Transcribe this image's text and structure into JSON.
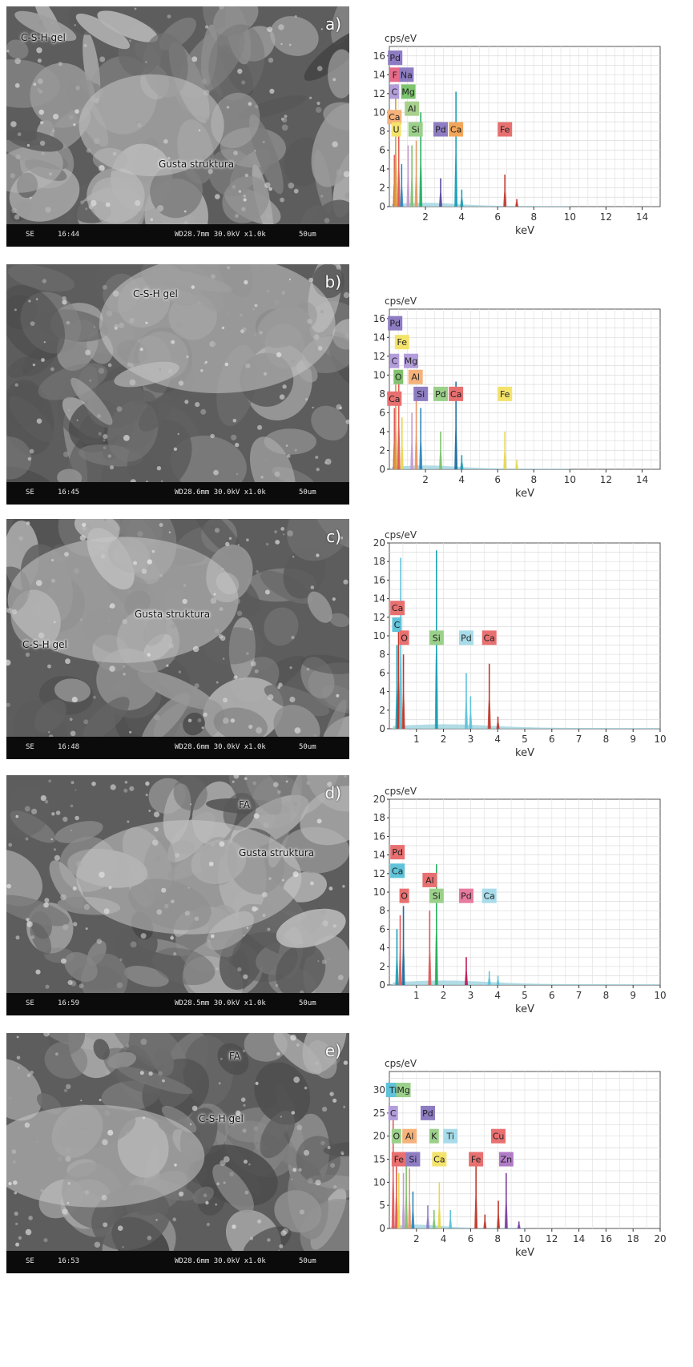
{
  "panels": [
    {
      "letter": "a)",
      "labels": [
        "C-S-H gel",
        "Gusta struktura"
      ],
      "sem_footer": {
        "mode": "SE",
        "time": "16:44",
        "params": "WD28.7mm 30.0kV x1.0k",
        "scale": "50um"
      },
      "spectrum": {
        "ylabel": "cps/eV",
        "xlabel": "keV",
        "xmax": 15,
        "ymax": 17,
        "xticks": [
          2,
          4,
          6,
          8,
          10,
          12,
          14
        ],
        "yticks": [
          0,
          2,
          4,
          6,
          8,
          10,
          12,
          14,
          16
        ],
        "peaks": [
          {
            "x": 0.28,
            "y": 5.5,
            "color": "#e05a5a"
          },
          {
            "x": 0.35,
            "y": 13,
            "color": "#d9a033"
          },
          {
            "x": 0.52,
            "y": 9,
            "color": "#e05a5a"
          },
          {
            "x": 0.68,
            "y": 4.5,
            "color": "#2e86c1"
          },
          {
            "x": 1.04,
            "y": 6.5,
            "color": "#c39bd3"
          },
          {
            "x": 1.25,
            "y": 6.5,
            "color": "#82c26e"
          },
          {
            "x": 1.49,
            "y": 7,
            "color": "#e59866"
          },
          {
            "x": 1.74,
            "y": 10,
            "color": "#27ae60"
          },
          {
            "x": 2.84,
            "y": 3,
            "color": "#5b4a9e"
          },
          {
            "x": 3.69,
            "y": 12.2,
            "color": "#1a9fb5"
          },
          {
            "x": 4.01,
            "y": 1.8,
            "color": "#1a9fb5"
          },
          {
            "x": 6.4,
            "y": 3.4,
            "color": "#c0392b"
          },
          {
            "x": 7.06,
            "y": 0.8,
            "color": "#c0392b"
          }
        ],
        "tags": [
          {
            "text": "Pd",
            "x": 0.32,
            "y": 15.8,
            "color": "#8e7cc3"
          },
          {
            "text": "F",
            "x": 0.3,
            "y": 14.0,
            "color": "#e86a8a"
          },
          {
            "text": "Na",
            "x": 0.95,
            "y": 14.0,
            "color": "#8e7cc3"
          },
          {
            "text": "C",
            "x": 0.28,
            "y": 12.2,
            "color": "#b39ddb"
          },
          {
            "text": "Mg",
            "x": 1.05,
            "y": 12.2,
            "color": "#7dc46e"
          },
          {
            "text": "Al",
            "x": 1.25,
            "y": 10.4,
            "color": "#a8d08d"
          },
          {
            "text": "Ca",
            "x": 0.28,
            "y": 9.5,
            "color": "#f5b27a"
          },
          {
            "text": "U",
            "x": 0.38,
            "y": 8.2,
            "color": "#f3e36b"
          },
          {
            "text": "Si",
            "x": 1.45,
            "y": 8.2,
            "color": "#9bd08a"
          },
          {
            "text": "Pd",
            "x": 2.84,
            "y": 8.2,
            "color": "#8e7cc3"
          },
          {
            "text": "Ca",
            "x": 3.69,
            "y": 8.2,
            "color": "#f2a65a"
          },
          {
            "text": "Fe",
            "x": 6.4,
            "y": 8.2,
            "color": "#e87070"
          }
        ]
      }
    },
    {
      "letter": "b)",
      "labels": [
        "C-S-H gel"
      ],
      "sem_footer": {
        "mode": "SE",
        "time": "16:45",
        "params": "WD28.6mm 30.0kV x1.0k",
        "scale": "50um"
      },
      "spectrum": {
        "ylabel": "cps/eV",
        "xlabel": "keV",
        "xmax": 15,
        "ymax": 17,
        "xticks": [
          2,
          4,
          6,
          8,
          10,
          12,
          14
        ],
        "yticks": [
          0,
          2,
          4,
          6,
          8,
          10,
          12,
          14,
          16
        ],
        "peaks": [
          {
            "x": 0.28,
            "y": 6.5,
            "color": "#e05a5a"
          },
          {
            "x": 0.35,
            "y": 9,
            "color": "#d9a033"
          },
          {
            "x": 0.52,
            "y": 10.5,
            "color": "#e05a5a"
          },
          {
            "x": 0.7,
            "y": 5.5,
            "color": "#e6d84a"
          },
          {
            "x": 1.25,
            "y": 6,
            "color": "#c39bd3"
          },
          {
            "x": 1.49,
            "y": 7.5,
            "color": "#e59866"
          },
          {
            "x": 1.74,
            "y": 6.5,
            "color": "#2e86c1"
          },
          {
            "x": 2.84,
            "y": 4,
            "color": "#7dc46e"
          },
          {
            "x": 3.69,
            "y": 9.3,
            "color": "#1f6f9f"
          },
          {
            "x": 4.01,
            "y": 1.5,
            "color": "#1a9fb5"
          },
          {
            "x": 6.4,
            "y": 4,
            "color": "#e6d84a"
          },
          {
            "x": 7.06,
            "y": 1,
            "color": "#e6d84a"
          }
        ],
        "tags": [
          {
            "text": "Pd",
            "x": 0.32,
            "y": 15.5,
            "color": "#8e7cc3"
          },
          {
            "text": "Fe",
            "x": 0.7,
            "y": 13.5,
            "color": "#f3e36b"
          },
          {
            "text": "C",
            "x": 0.28,
            "y": 11.5,
            "color": "#b39ddb"
          },
          {
            "text": "Mg",
            "x": 1.2,
            "y": 11.5,
            "color": "#b39ddb"
          },
          {
            "text": "O",
            "x": 0.5,
            "y": 9.8,
            "color": "#82c26e"
          },
          {
            "text": "Al",
            "x": 1.45,
            "y": 9.8,
            "color": "#f5b27a"
          },
          {
            "text": "Ca",
            "x": 0.28,
            "y": 7.5,
            "color": "#e87070"
          },
          {
            "text": "Si",
            "x": 1.74,
            "y": 8.0,
            "color": "#8e7cc3"
          },
          {
            "text": "Pd",
            "x": 2.84,
            "y": 8.0,
            "color": "#9bd08a"
          },
          {
            "text": "Ca",
            "x": 3.69,
            "y": 8.0,
            "color": "#e87070"
          },
          {
            "text": "Fe",
            "x": 6.4,
            "y": 8.0,
            "color": "#f3e36b"
          }
        ]
      }
    },
    {
      "letter": "c)",
      "labels": [
        "Gusta struktura",
        "C-S-H gel"
      ],
      "sem_footer": {
        "mode": "SE",
        "time": "16:48",
        "params": "WD28.6mm 30.0kV x1.0k",
        "scale": "50um"
      },
      "spectrum": {
        "ylabel": "cps/eV",
        "xlabel": "keV",
        "xmax": 10,
        "ymax": 20,
        "xticks": [
          1,
          2,
          3,
          4,
          5,
          6,
          7,
          8,
          9,
          10
        ],
        "yticks": [
          0,
          2,
          4,
          6,
          8,
          10,
          12,
          14,
          16,
          18,
          20
        ],
        "peaks": [
          {
            "x": 0.28,
            "y": 9,
            "color": "#1a9fb5"
          },
          {
            "x": 0.34,
            "y": 10.5,
            "color": "#c0392b"
          },
          {
            "x": 0.42,
            "y": 18.4,
            "color": "#5fc3d9"
          },
          {
            "x": 0.52,
            "y": 8,
            "color": "#c0392b"
          },
          {
            "x": 1.74,
            "y": 19.2,
            "color": "#1a9fb5"
          },
          {
            "x": 2.84,
            "y": 6,
            "color": "#5fc3d9"
          },
          {
            "x": 3.0,
            "y": 3.5,
            "color": "#5fc3d9"
          },
          {
            "x": 3.69,
            "y": 7,
            "color": "#c0392b"
          },
          {
            "x": 4.01,
            "y": 1.3,
            "color": "#c0392b"
          }
        ],
        "tags": [
          {
            "text": "Ca",
            "x": 0.3,
            "y": 13.0,
            "color": "#e87070"
          },
          {
            "text": "C",
            "x": 0.28,
            "y": 11.2,
            "color": "#5fc3d9"
          },
          {
            "text": "O",
            "x": 0.55,
            "y": 9.8,
            "color": "#e87070"
          },
          {
            "text": "Si",
            "x": 1.74,
            "y": 9.8,
            "color": "#9bd08a"
          },
          {
            "text": "Pd",
            "x": 2.84,
            "y": 9.8,
            "color": "#a8dcea"
          },
          {
            "text": "Ca",
            "x": 3.69,
            "y": 9.8,
            "color": "#e87070"
          }
        ]
      }
    },
    {
      "letter": "d)",
      "labels": [
        "FA",
        "Gusta struktura"
      ],
      "sem_footer": {
        "mode": "SE",
        "time": "16:59",
        "params": "WD28.5mm 30.0kV x1.0k",
        "scale": "50um"
      },
      "spectrum": {
        "ylabel": "cps/eV",
        "xlabel": "keV",
        "xmax": 10,
        "ymax": 20,
        "xticks": [
          1,
          2,
          3,
          4,
          5,
          6,
          7,
          8,
          9,
          10
        ],
        "yticks": [
          0,
          2,
          4,
          6,
          8,
          10,
          12,
          14,
          16,
          18,
          20
        ],
        "peaks": [
          {
            "x": 0.28,
            "y": 6,
            "color": "#1a9fb5"
          },
          {
            "x": 0.4,
            "y": 7.5,
            "color": "#e05a5a"
          },
          {
            "x": 0.52,
            "y": 8.5,
            "color": "#1f6f9f"
          },
          {
            "x": 1.49,
            "y": 8,
            "color": "#e05a5a"
          },
          {
            "x": 1.74,
            "y": 13,
            "color": "#27ae60"
          },
          {
            "x": 2.84,
            "y": 3,
            "color": "#c2185b"
          },
          {
            "x": 3.69,
            "y": 1.5,
            "color": "#5fc3d9"
          },
          {
            "x": 4.01,
            "y": 1,
            "color": "#5fc3d9"
          }
        ],
        "tags": [
          {
            "text": "Pd",
            "x": 0.3,
            "y": 14.3,
            "color": "#e87070"
          },
          {
            "text": "Ca",
            "x": 0.3,
            "y": 12.3,
            "color": "#5fc3d9"
          },
          {
            "text": "Al",
            "x": 1.49,
            "y": 11.3,
            "color": "#e87070"
          },
          {
            "text": "O",
            "x": 0.55,
            "y": 9.6,
            "color": "#e87070"
          },
          {
            "text": "Si",
            "x": 1.74,
            "y": 9.6,
            "color": "#9bd08a"
          },
          {
            "text": "Pd",
            "x": 2.84,
            "y": 9.6,
            "color": "#e87ba0"
          },
          {
            "text": "Ca",
            "x": 3.69,
            "y": 9.6,
            "color": "#a8dcea"
          }
        ]
      }
    },
    {
      "letter": "e)",
      "labels": [
        "FA",
        "C-S-H gel"
      ],
      "sem_footer": {
        "mode": "SE",
        "time": "16:53",
        "params": "WD28.6mm 30.0kV x1.0k",
        "scale": "50um"
      },
      "spectrum": {
        "ylabel": "cps/eV",
        "xlabel": "keV",
        "xmax": 20,
        "ymax": 34,
        "xticks": [
          2,
          4,
          6,
          8,
          10,
          12,
          14,
          16,
          18,
          20
        ],
        "yticks": [
          0,
          5,
          10,
          15,
          20,
          25,
          30
        ],
        "peaks": [
          {
            "x": 0.28,
            "y": 24,
            "color": "#e05a5a"
          },
          {
            "x": 0.52,
            "y": 16,
            "color": "#e05a5a"
          },
          {
            "x": 0.7,
            "y": 12,
            "color": "#e6d84a"
          },
          {
            "x": 1.04,
            "y": 12,
            "color": "#c39bd3"
          },
          {
            "x": 1.25,
            "y": 15,
            "color": "#82c26e"
          },
          {
            "x": 1.49,
            "y": 13,
            "color": "#e59866"
          },
          {
            "x": 1.74,
            "y": 8,
            "color": "#2e86c1"
          },
          {
            "x": 2.84,
            "y": 5,
            "color": "#8e7cc3"
          },
          {
            "x": 3.3,
            "y": 4,
            "color": "#7dc46e"
          },
          {
            "x": 3.69,
            "y": 10,
            "color": "#e6d84a"
          },
          {
            "x": 4.51,
            "y": 4,
            "color": "#5fc3d9"
          },
          {
            "x": 6.4,
            "y": 15,
            "color": "#c0392b"
          },
          {
            "x": 7.06,
            "y": 3,
            "color": "#c0392b"
          },
          {
            "x": 8.05,
            "y": 6,
            "color": "#c0392b"
          },
          {
            "x": 8.63,
            "y": 12,
            "color": "#7b3f9e"
          },
          {
            "x": 9.57,
            "y": 1.5,
            "color": "#7b3f9e"
          }
        ],
        "tags": [
          {
            "text": "Ti",
            "x": 0.28,
            "y": 30.0,
            "color": "#5fc3d9"
          },
          {
            "text": "Mg",
            "x": 1.04,
            "y": 30.0,
            "color": "#9bd08a"
          },
          {
            "text": "C",
            "x": 0.28,
            "y": 25.0,
            "color": "#b39ddb"
          },
          {
            "text": "Pd",
            "x": 2.84,
            "y": 25.0,
            "color": "#8e7cc3"
          },
          {
            "text": "O",
            "x": 0.52,
            "y": 20.0,
            "color": "#9bd08a"
          },
          {
            "text": "Al",
            "x": 1.49,
            "y": 20.0,
            "color": "#f5b27a"
          },
          {
            "text": "K",
            "x": 3.3,
            "y": 20.0,
            "color": "#9bd08a"
          },
          {
            "text": "Ti",
            "x": 4.51,
            "y": 20.0,
            "color": "#a8dcea"
          },
          {
            "text": "Cu",
            "x": 8.05,
            "y": 20.0,
            "color": "#e87070"
          },
          {
            "text": "Fe",
            "x": 0.7,
            "y": 15.0,
            "color": "#e87070"
          },
          {
            "text": "Si",
            "x": 1.74,
            "y": 15.0,
            "color": "#8e7cc3"
          },
          {
            "text": "Ca",
            "x": 3.69,
            "y": 15.0,
            "color": "#f3e36b"
          },
          {
            "text": "Fe",
            "x": 6.4,
            "y": 15.0,
            "color": "#e87070"
          },
          {
            "text": "Zn",
            "x": 8.63,
            "y": 15.0,
            "color": "#b07cc6"
          }
        ]
      }
    }
  ]
}
